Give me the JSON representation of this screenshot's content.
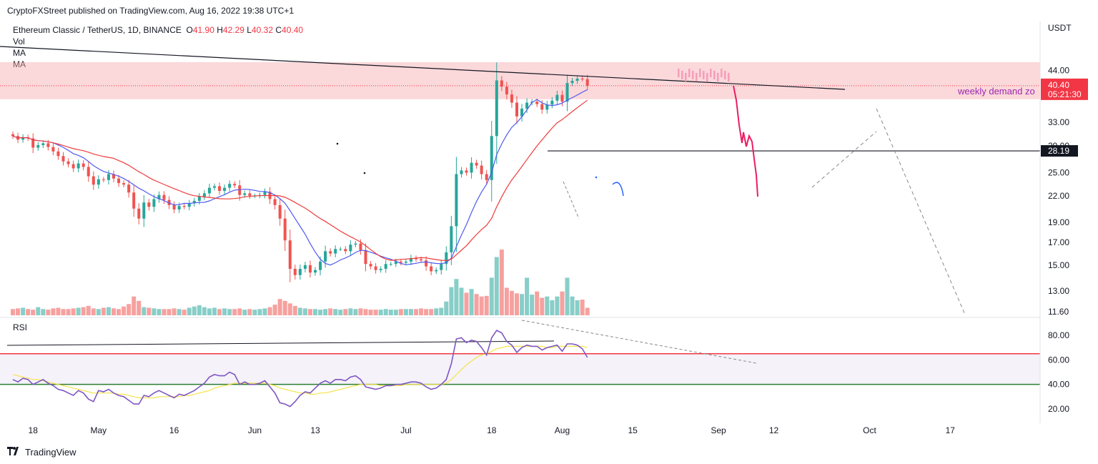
{
  "header": {
    "published": "CryptoFXStreet published on TradingView.com, Aug 16, 2022 19:38 UTC+1"
  },
  "legend": {
    "symbol": "Ethereum Classic / TetherUS, 1D, BINANCE",
    "o_label": "O",
    "o_value": "41.90",
    "h_label": "H",
    "h_value": "42.29",
    "l_label": "L",
    "l_value": "40.32",
    "c_label": "C",
    "c_value": "40.40",
    "vol": "Vol",
    "ma1": "MA",
    "ma2": "MA"
  },
  "rsi_label": "RSI",
  "currency": "USDT",
  "footer": {
    "brand": "TradingView"
  },
  "annotations": {
    "zone_label": "weekly demand zo",
    "price_tag": "40.40",
    "countdown": "05:21:30",
    "level_tag": "28.19"
  },
  "colors": {
    "up": "#26a69a",
    "down": "#ef5350",
    "ma_fast": "#4e5bf0",
    "ma_slow": "#ef3b3b",
    "zone": "#f7a8ae",
    "rsi": "#7e57c2",
    "rsi_ma": "#f5e34b"
  },
  "chart_data": [
    {
      "type": "candlestick",
      "title": "Ethereum Classic / TetherUS, 1D, BINANCE",
      "y_scale": "log",
      "y_ticks": [
        "44.00",
        "33.00",
        "29.00",
        "25.00",
        "22.00",
        "19.00",
        "17.00",
        "15.00",
        "13.00",
        "11.60"
      ],
      "y_tick_values": [
        44,
        33,
        29,
        25,
        22,
        19,
        17,
        15,
        13,
        11.6
      ],
      "x_ticks": [
        "18",
        "May",
        "16",
        "Jun",
        "13",
        "Jul",
        "18",
        "Aug",
        "15",
        "Sep",
        "12",
        "Oct",
        "17"
      ],
      "x_tick_dates": [
        "2022-04-18",
        "2022-05-01",
        "2022-05-16",
        "2022-06-01",
        "2022-06-13",
        "2022-07-01",
        "2022-07-18",
        "2022-08-01",
        "2022-08-15",
        "2022-09-01",
        "2022-09-12",
        "2022-10-01",
        "2022-10-17"
      ],
      "start_date": "2022-04-14",
      "close_series": [
        30.6,
        30.0,
        30.4,
        30.2,
        28.7,
        29.1,
        29.4,
        28.8,
        28.1,
        27.4,
        26.6,
        26.2,
        25.6,
        26.3,
        25.8,
        24.5,
        23.4,
        24.1,
        24.0,
        24.8,
        24.2,
        23.6,
        23.4,
        22.4,
        20.5,
        19.4,
        21.2,
        20.7,
        21.6,
        22.1,
        21.5,
        20.9,
        20.4,
        20.8,
        20.7,
        21.1,
        21.4,
        21.9,
        22.3,
        23.0,
        23.2,
        22.6,
        23.0,
        23.5,
        23.3,
        22.1,
        22.3,
        22.0,
        22.0,
        22.1,
        22.5,
        21.6,
        20.9,
        19.4,
        17.2,
        14.7,
        14.2,
        14.7,
        15.0,
        14.4,
        14.6,
        15.3,
        16.2,
        16.0,
        16.4,
        16.4,
        16.2,
        16.8,
        16.9,
        16.3,
        15.1,
        14.9,
        14.6,
        14.7,
        15.1,
        15.1,
        15.3,
        15.2,
        15.3,
        15.6,
        15.5,
        15.4,
        14.9,
        14.5,
        14.6,
        15.1,
        16.1,
        18.6,
        24.8,
        25.3,
        25.0,
        26.4,
        26.0,
        24.8,
        24.0,
        30.6,
        41.6,
        40.2,
        38.5,
        36.8,
        34.1,
        35.6,
        36.8,
        37.0,
        36.5,
        35.4,
        36.4,
        37.2,
        38.4,
        37.0,
        41.0,
        41.5,
        42.0,
        41.9,
        40.4
      ],
      "volume_series": [
        1.0,
        1.1,
        1.2,
        1.0,
        0.9,
        1.3,
        1.0,
        0.9,
        1.1,
        1.2,
        1.0,
        1.0,
        1.1,
        1.2,
        1.3,
        1.5,
        1.1,
        1.0,
        1.2,
        1.3,
        1.1,
        1.0,
        1.4,
        1.8,
        3.0,
        2.3,
        1.3,
        1.2,
        1.1,
        1.0,
        1.0,
        1.0,
        1.1,
        1.0,
        0.9,
        1.2,
        1.4,
        1.6,
        1.3,
        1.1,
        1.2,
        1.0,
        1.1,
        1.0,
        1.0,
        1.1,
        0.9,
        1.0,
        0.9,
        1.0,
        1.1,
        1.3,
        1.7,
        2.6,
        2.3,
        1.9,
        1.5,
        1.2,
        1.1,
        1.0,
        1.0,
        0.9,
        1.0,
        1.1,
        1.0,
        0.9,
        1.0,
        1.1,
        1.0,
        1.1,
        1.0,
        0.9,
        0.9,
        0.9,
        1.0,
        0.9,
        0.9,
        1.0,
        1.0,
        1.0,
        1.0,
        1.1,
        1.0,
        1.0,
        1.1,
        1.2,
        2.2,
        4.5,
        5.8,
        4.4,
        3.6,
        4.2,
        3.4,
        3.0,
        3.1,
        6.0,
        9.3,
        10.5,
        4.4,
        3.9,
        3.5,
        3.4,
        6.0,
        3.3,
        3.8,
        2.8,
        3.0,
        2.4,
        3.0,
        3.8,
        6.0,
        3.0,
        2.4,
        2.5,
        1.2
      ],
      "ma_fast_label": "MA",
      "ma_slow_label": "MA",
      "horizontal_level": 28.19,
      "last_price": 40.4,
      "demand_zone": [
        37.5,
        46.0
      ]
    },
    {
      "type": "line",
      "title": "RSI",
      "y_ticks": [
        "80.00",
        "60.00",
        "40.00",
        "20.00"
      ],
      "y_tick_values": [
        80,
        60,
        40,
        20
      ],
      "upper_band": 65,
      "lower_band": 40,
      "rsi_series": [
        44,
        42,
        45,
        44,
        40,
        42,
        44,
        41,
        39,
        36,
        35,
        33,
        31,
        35,
        33,
        28,
        26,
        35,
        34,
        36,
        33,
        31,
        30,
        27,
        24,
        24,
        31,
        30,
        33,
        35,
        33,
        31,
        29,
        32,
        31,
        33,
        35,
        38,
        41,
        46,
        48,
        47,
        47,
        50,
        48,
        40,
        42,
        40,
        40,
        41,
        43,
        38,
        33,
        25,
        24,
        22,
        26,
        31,
        34,
        33,
        37,
        41,
        43,
        41,
        44,
        44,
        43,
        46,
        47,
        44,
        38,
        37,
        36,
        37,
        39,
        39,
        40,
        40,
        41,
        42,
        42,
        41,
        38,
        36,
        37,
        40,
        44,
        57,
        77,
        78,
        74,
        76,
        75,
        70,
        64,
        78,
        84,
        82,
        75,
        72,
        66,
        70,
        72,
        71,
        71,
        68,
        70,
        71,
        72,
        67,
        73,
        73,
        72,
        69,
        62
      ],
      "rsi_ma_series": [
        48,
        47,
        46,
        45,
        44,
        44,
        43,
        42,
        41,
        40,
        39,
        38,
        37,
        36,
        35,
        34,
        33,
        33,
        33,
        33,
        33,
        32,
        32,
        31,
        30,
        29,
        29,
        29,
        29,
        30,
        30,
        30,
        30,
        30,
        31,
        31,
        32,
        33,
        34,
        35,
        37,
        38,
        39,
        40,
        41,
        41,
        41,
        41,
        41,
        41,
        41,
        40,
        39,
        37,
        36,
        35,
        34,
        33,
        33,
        32,
        32,
        33,
        33,
        34,
        35,
        36,
        37,
        38,
        39,
        40,
        40,
        40,
        40,
        39,
        39,
        39,
        39,
        39,
        40,
        40,
        40,
        40,
        40,
        40,
        40,
        40,
        41,
        44,
        48,
        52,
        56,
        59,
        62,
        64,
        65,
        67,
        69,
        70,
        71,
        71,
        71,
        71,
        71,
        71,
        71,
        71,
        70,
        70,
        71,
        71,
        71,
        71,
        71,
        71,
        70
      ]
    }
  ]
}
